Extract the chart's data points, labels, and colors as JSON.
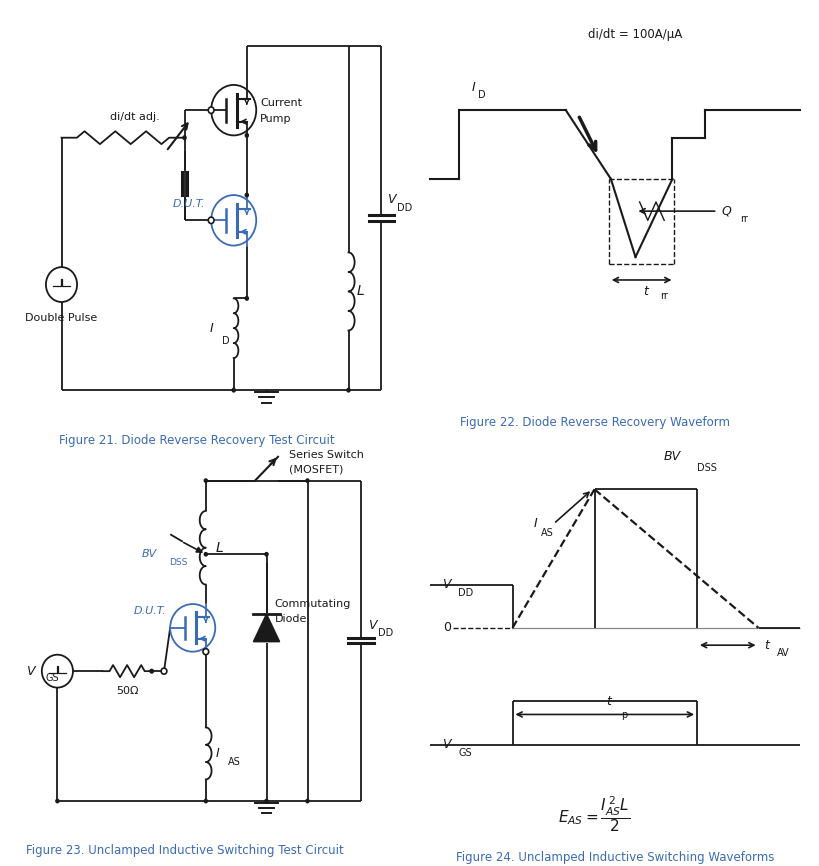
{
  "fig_width": 8.2,
  "fig_height": 8.66,
  "bg_color": "#ffffff",
  "text_color": "#1a1a1a",
  "blue_color": "#3a6bb5",
  "line_color": "#1a1a1a",
  "fig21_caption": "Figure 21. Diode Reverse Recovery Test Circuit",
  "fig22_caption": "Figure 22. Diode Reverse Recovery Waveform",
  "fig23_caption": "Figure 23. Unclamped Inductive Switching Test Circuit",
  "fig24_caption": "Figure 24. Unclamped Inductive Switching Waveforms",
  "caption_fontsize": 8.5,
  "label_fontsize": 9,
  "small_fontsize": 8,
  "caption_color": "#3a6bb5"
}
